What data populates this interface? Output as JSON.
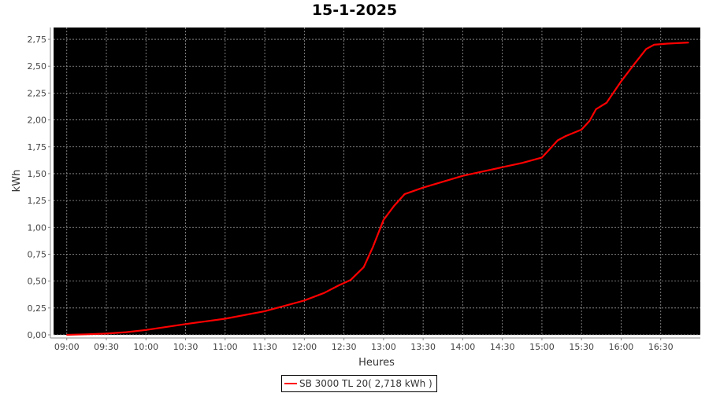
{
  "chart_data": {
    "type": "line",
    "title": "15-1-2025",
    "xlabel": "Heures",
    "ylabel": "kWh",
    "xlim": [
      "08:50",
      "17:00"
    ],
    "ylim": [
      0,
      2.86
    ],
    "grid": true,
    "background": "#000000",
    "grid_color": "#9a9a9a",
    "x_ticks": [
      "09:00",
      "09:30",
      "10:00",
      "10:30",
      "11:00",
      "11:30",
      "12:00",
      "12:30",
      "13:00",
      "13:30",
      "14:00",
      "14:30",
      "15:00",
      "15:30",
      "16:00",
      "16:30"
    ],
    "y_ticks": [
      "0,00",
      "0,25",
      "0,50",
      "0,75",
      "1,00",
      "1,25",
      "1,50",
      "1,75",
      "2,00",
      "2,25",
      "2,50",
      "2,75"
    ],
    "legend_position": "bottom",
    "series": [
      {
        "name": "SB 3000 TL 20( 2,718 kWh )",
        "color": "#ff0000",
        "x": [
          "09:00",
          "09:15",
          "09:30",
          "09:45",
          "10:00",
          "10:08",
          "10:30",
          "11:00",
          "11:30",
          "12:00",
          "12:15",
          "12:26",
          "12:35",
          "12:45",
          "12:52",
          "13:00",
          "13:08",
          "13:16",
          "13:30",
          "14:00",
          "14:30",
          "14:45",
          "15:00",
          "15:06",
          "15:12",
          "15:18",
          "15:30",
          "15:36",
          "15:41",
          "15:49",
          "16:00",
          "16:10",
          "16:19",
          "16:25",
          "16:35",
          "16:51"
        ],
        "y": [
          0.0,
          0.005,
          0.012,
          0.025,
          0.045,
          0.06,
          0.1,
          0.15,
          0.22,
          0.32,
          0.39,
          0.46,
          0.51,
          0.63,
          0.82,
          1.07,
          1.2,
          1.31,
          1.37,
          1.48,
          1.56,
          1.6,
          1.65,
          1.73,
          1.81,
          1.85,
          1.91,
          1.99,
          2.1,
          2.16,
          2.36,
          2.52,
          2.66,
          2.7,
          2.71,
          2.72
        ]
      }
    ]
  }
}
